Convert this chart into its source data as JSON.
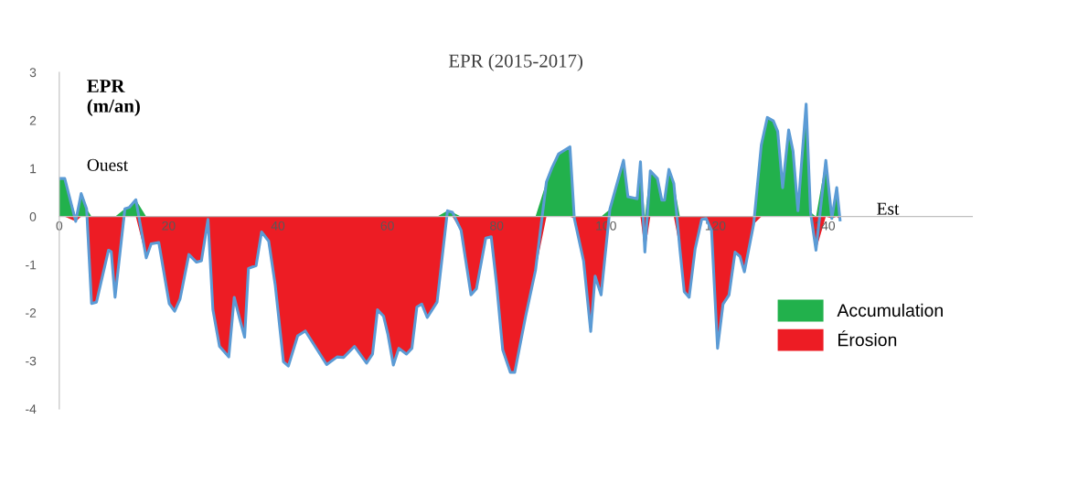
{
  "chart_data": {
    "type": "area",
    "title": "EPR (2015-2017)",
    "ylabel": "EPR\n(m/an)",
    "xlim": [
      0,
      167
    ],
    "xticks": [
      0,
      20,
      40,
      60,
      80,
      100,
      120,
      140
    ],
    "ylim": [
      -4,
      3
    ],
    "yticks": [
      -4,
      -3,
      -2,
      -1,
      0,
      1,
      2,
      3
    ],
    "grid": false,
    "legend": "right",
    "annotations": [
      "Ouest",
      "Est"
    ],
    "x": [
      0,
      1,
      3,
      4,
      5,
      5.9,
      6.8,
      9,
      9.5,
      10.2,
      12,
      12.8,
      14,
      15.9,
      16.8,
      18.2,
      20.1,
      21.1,
      22.1,
      23.7,
      25.1,
      26,
      27.2,
      28.1,
      29.3,
      31,
      32,
      33,
      33.9,
      34.6,
      36,
      37,
      38.3,
      39.5,
      41,
      41.9,
      43.6,
      45,
      48.9,
      50.8,
      52,
      54,
      56.2,
      57.3,
      58.2,
      59.3,
      60.1,
      61.1,
      62.1,
      63.5,
      64.5,
      65.4,
      66.3,
      67.3,
      69.1,
      71,
      71.9,
      73.5,
      75.3,
      76.3,
      78,
      79,
      80,
      81.1,
      82.5,
      83.3,
      85.3,
      87.1,
      89.1,
      90.1,
      91.3,
      93.4,
      94.2,
      95.9,
      97.2,
      98,
      99.1,
      100.7,
      103.2,
      104,
      105.7,
      106.3,
      107.1,
      108.1,
      109.4,
      110.2,
      110.7,
      111.5,
      112.4,
      113.5,
      114.3,
      115.2,
      116.3,
      117.5,
      118.3,
      119.3,
      120.4,
      121.4,
      122.5,
      123.6,
      124.5,
      125.3,
      127,
      128.4,
      129.5,
      130.6,
      131.4,
      132.3,
      133.4,
      134.2,
      135.1,
      135.8,
      136.6,
      137.4,
      138.4,
      140.2,
      141.3,
      142.2,
      142.8
    ],
    "series": [
      {
        "name": "Accumulation",
        "color": "#22b14c",
        "values": [
          0.79,
          0.79,
          0,
          0.48,
          0.16,
          0,
          0,
          0,
          0,
          0,
          0.16,
          0.19,
          0.35,
          0,
          0,
          0,
          0,
          0,
          0,
          0,
          0,
          0,
          0,
          0,
          0,
          0,
          0,
          0,
          0,
          0,
          0,
          0,
          0,
          0,
          0,
          0,
          0,
          0,
          0,
          0,
          0,
          0,
          0,
          0,
          0,
          0,
          0,
          0,
          0,
          0,
          0,
          0,
          0,
          0,
          0,
          0.12,
          0.09,
          0,
          0,
          0,
          0,
          0,
          0,
          0,
          0,
          0,
          0,
          0,
          0.72,
          1.01,
          1.3,
          1.45,
          0,
          0,
          0,
          0,
          0,
          0.15,
          1.17,
          0.41,
          0.37,
          1.14,
          0,
          0.95,
          0.79,
          0.34,
          0.34,
          0.98,
          0.69,
          0,
          0,
          0,
          0,
          0,
          0,
          0,
          0,
          0,
          0,
          0,
          0,
          0,
          0,
          1.49,
          2.06,
          1.99,
          1.77,
          0.6,
          1.8,
          1.36,
          0.12,
          1.17,
          2.34,
          0.09,
          0,
          1.17,
          0,
          0.6,
          0
        ]
      },
      {
        "name": "Érosion",
        "color": "#ed1c24",
        "values": [
          0,
          0,
          -0.1,
          0,
          0,
          -1.81,
          -1.78,
          -0.7,
          -0.73,
          -1.68,
          0,
          0,
          0,
          -0.86,
          -0.57,
          -0.54,
          -1.81,
          -1.97,
          -1.71,
          -0.79,
          -0.95,
          -0.92,
          -0.06,
          -1.94,
          -2.7,
          -2.92,
          -1.68,
          -2.13,
          -2.51,
          -1.08,
          -1.02,
          -0.32,
          -0.51,
          -1.43,
          -3.02,
          -3.11,
          -2.48,
          -2.38,
          -3.08,
          -2.92,
          -2.93,
          -2.7,
          -3.05,
          -2.86,
          -1.94,
          -2.07,
          -2.45,
          -3.09,
          -2.74,
          -2.86,
          -2.74,
          -1.88,
          -1.82,
          -2.1,
          -1.78,
          0,
          0,
          -0.29,
          -1.63,
          -1.5,
          -0.45,
          -0.42,
          -1.43,
          -2.77,
          -3.24,
          -3.24,
          -2.07,
          -1.12,
          0,
          0,
          0,
          0,
          -0.04,
          -0.93,
          -2.39,
          -1.24,
          -1.63,
          0,
          0,
          0,
          0,
          0,
          -0.74,
          0,
          0,
          0,
          0,
          0,
          0,
          -0.67,
          -1.56,
          -1.68,
          -0.67,
          -0.06,
          -0.04,
          -0.29,
          -2.74,
          -1.82,
          -1.63,
          -0.74,
          -0.83,
          -1.15,
          -0.16,
          0,
          0,
          0,
          0,
          0,
          0,
          0,
          0,
          0,
          0,
          0,
          -0.7,
          0,
          -0.04,
          0,
          -0.07
        ]
      },
      {
        "type": "line",
        "color": "#5b9bd5",
        "values": [
          0.79,
          0.79,
          -0.1,
          0.48,
          0.16,
          -1.81,
          -1.78,
          -0.7,
          -0.73,
          -1.68,
          0.16,
          0.19,
          0.35,
          -0.86,
          -0.57,
          -0.54,
          -1.81,
          -1.97,
          -1.71,
          -0.79,
          -0.95,
          -0.92,
          -0.06,
          -1.94,
          -2.7,
          -2.92,
          -1.68,
          -2.13,
          -2.51,
          -1.08,
          -1.02,
          -0.32,
          -0.51,
          -1.43,
          -3.02,
          -3.11,
          -2.48,
          -2.38,
          -3.08,
          -2.92,
          -2.93,
          -2.7,
          -3.05,
          -2.86,
          -1.94,
          -2.07,
          -2.45,
          -3.09,
          -2.74,
          -2.86,
          -2.74,
          -1.88,
          -1.82,
          -2.1,
          -1.78,
          0.12,
          0.09,
          -0.29,
          -1.63,
          -1.5,
          -0.45,
          -0.42,
          -1.43,
          -2.77,
          -3.24,
          -3.24,
          -2.07,
          -1.12,
          0.72,
          1.01,
          1.3,
          1.45,
          -0.04,
          -0.93,
          -2.39,
          -1.24,
          -1.63,
          0.15,
          1.17,
          0.41,
          0.37,
          1.14,
          -0.74,
          0.95,
          0.79,
          0.34,
          0.34,
          0.98,
          0.69,
          -0.67,
          -1.56,
          -1.68,
          -0.67,
          -0.06,
          -0.04,
          -0.29,
          -2.74,
          -1.82,
          -1.63,
          -0.74,
          -0.83,
          -1.15,
          -0.16,
          1.49,
          2.06,
          1.99,
          1.77,
          0.6,
          1.8,
          1.36,
          0.12,
          1.17,
          2.34,
          0.09,
          -0.7,
          1.17,
          -0.04,
          0.6,
          -0.07
        ]
      }
    ]
  }
}
